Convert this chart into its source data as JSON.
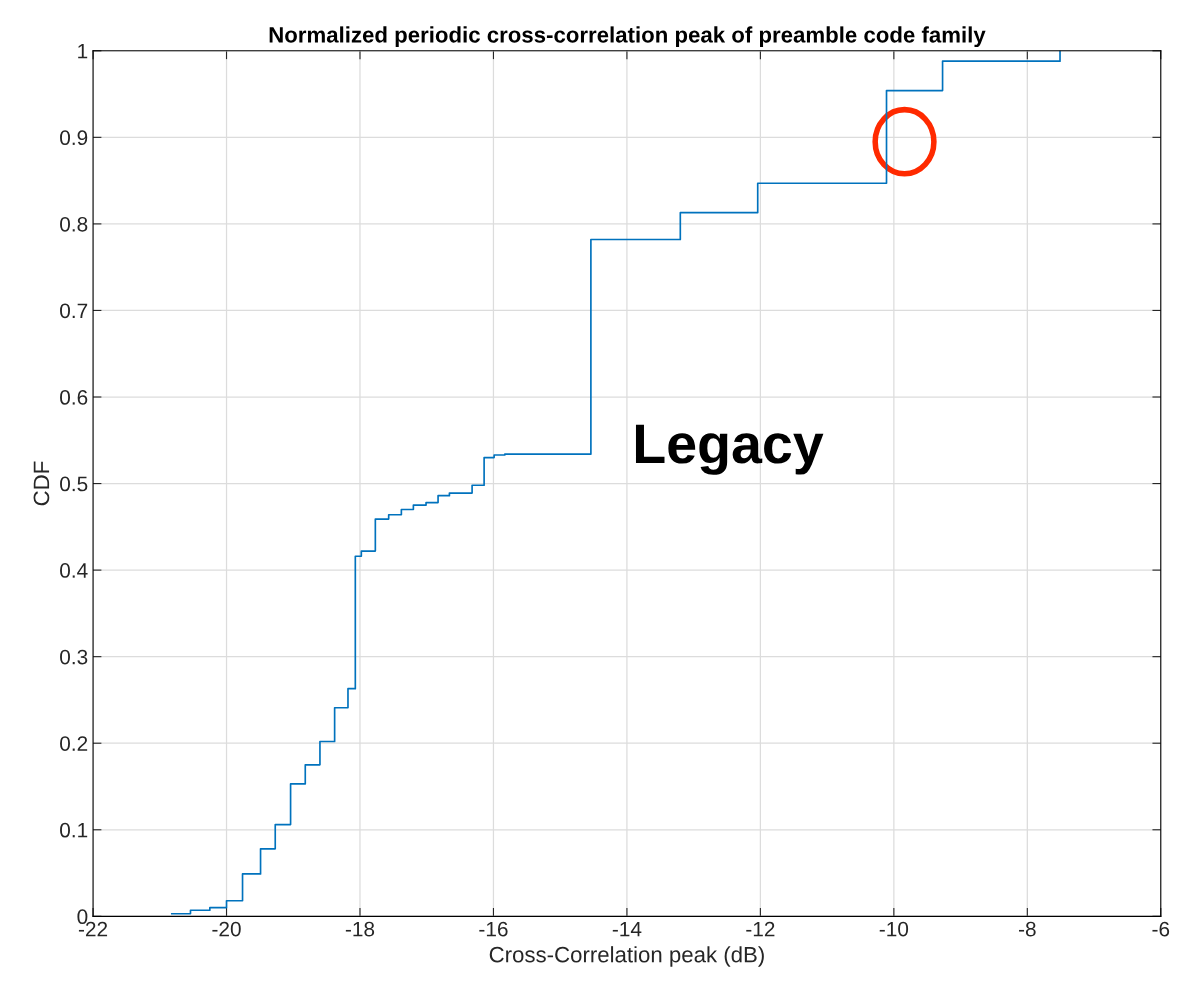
{
  "chart_data": {
    "type": "step",
    "title": "Normalized periodic cross-correlation peak of preamble code family",
    "xlabel": "Cross-Correlation peak (dB)",
    "ylabel": "CDF",
    "x": [
      -20.82,
      -20.54,
      -20.25,
      -20.0,
      -19.76,
      -19.49,
      -19.27,
      -19.04,
      -18.82,
      -18.6,
      -18.38,
      -18.18,
      -18.07,
      -17.98,
      -17.77,
      -17.57,
      -17.38,
      -17.2,
      -17.01,
      -16.83,
      -16.66,
      -16.32,
      -16.14,
      -15.99,
      -15.83,
      -14.54,
      -13.2,
      -12.04,
      -10.11,
      -9.27,
      -7.51
    ],
    "values": [
      0.003,
      0.007,
      0.01,
      0.018,
      0.049,
      0.078,
      0.106,
      0.153,
      0.175,
      0.202,
      0.241,
      0.263,
      0.416,
      0.422,
      0.459,
      0.464,
      0.47,
      0.475,
      0.478,
      0.486,
      0.489,
      0.498,
      0.53,
      0.533,
      0.534,
      0.782,
      0.813,
      0.847,
      0.954,
      0.988,
      1.0
    ],
    "color": "#0072bd",
    "xlim": [
      -22,
      -6
    ],
    "xticks": [
      -22,
      -20,
      -18,
      -16,
      -14,
      -12,
      -10,
      -8,
      -6
    ],
    "ylim": [
      0,
      1
    ],
    "yticks": [
      0,
      0.1,
      0.2,
      0.3,
      0.4,
      0.5,
      0.6,
      0.7,
      0.8,
      0.9,
      1
    ],
    "grid": true,
    "annotations": [
      "Legacy"
    ]
  }
}
